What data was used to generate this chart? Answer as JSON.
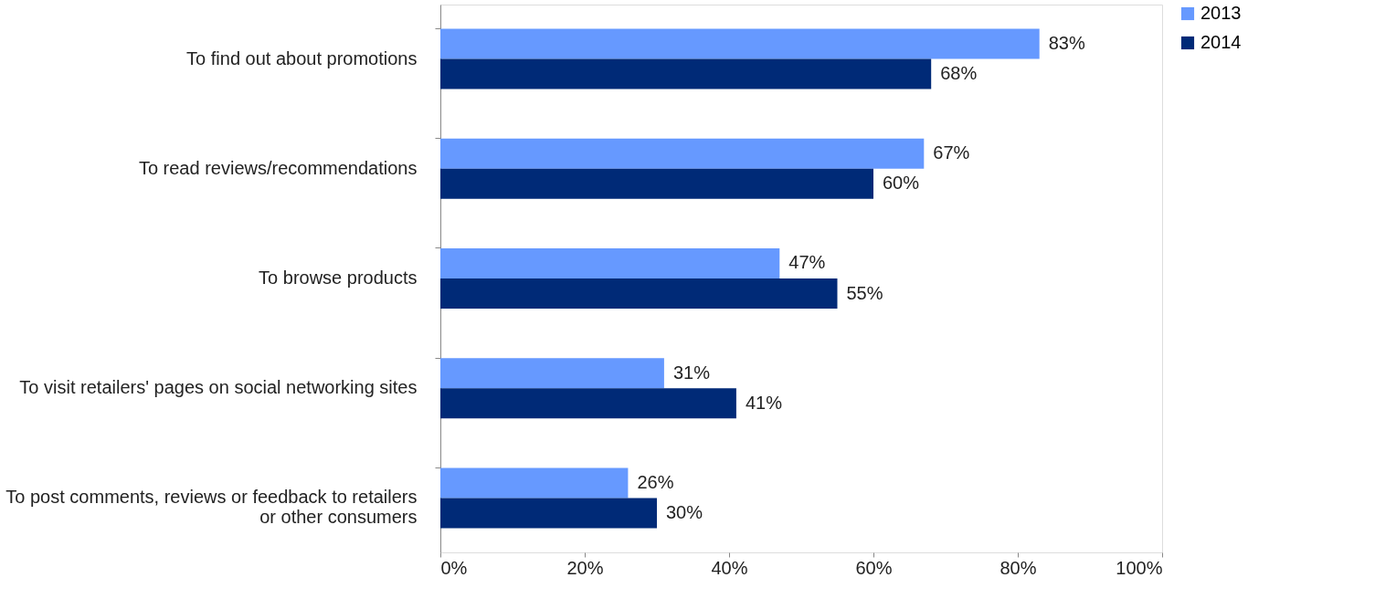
{
  "chart_data": {
    "type": "bar",
    "orientation": "horizontal",
    "categories": [
      "To find out about promotions",
      "To read reviews/recommendations",
      "To browse products",
      "To visit retailers' pages on social networking sites",
      "To post comments, reviews or feedback to retailers\nor other consumers"
    ],
    "series": [
      {
        "name": "2013",
        "color": "#6699ff",
        "values": [
          83,
          67,
          47,
          31,
          26
        ],
        "value_labels": [
          "83%",
          "67%",
          "47%",
          "31%",
          "26%"
        ]
      },
      {
        "name": "2014",
        "color": "#002a77",
        "values": [
          68,
          60,
          55,
          41,
          30
        ],
        "value_labels": [
          "68%",
          "60%",
          "55%",
          "41%",
          "30%"
        ]
      }
    ],
    "xlim": [
      0,
      100
    ],
    "xticks": [
      {
        "value": 0,
        "label": "0%"
      },
      {
        "value": 20,
        "label": "20%"
      },
      {
        "value": 40,
        "label": "40%"
      },
      {
        "value": 60,
        "label": "60%"
      },
      {
        "value": 80,
        "label": "80%"
      },
      {
        "value": 100,
        "label": "100%"
      }
    ],
    "grid": false,
    "legend": "right"
  }
}
